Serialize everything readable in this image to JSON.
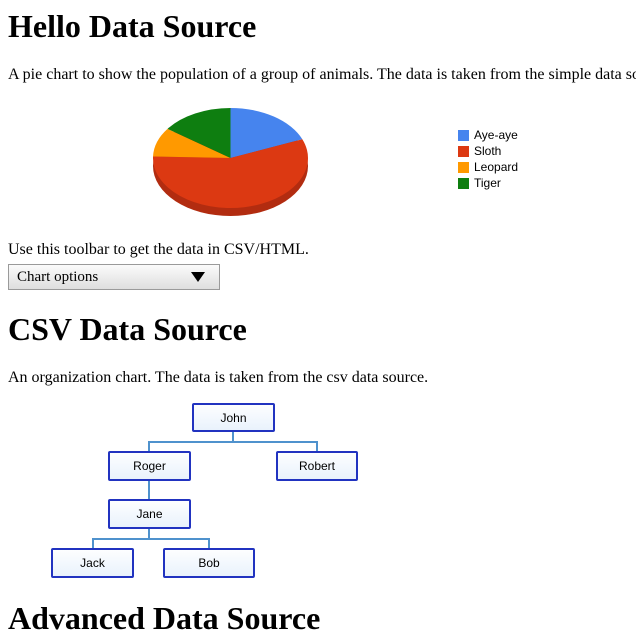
{
  "hello_section": {
    "title": "Hello Data Source",
    "description": "A pie chart to show the population of a group of animals. The data is taken from the simple data source.",
    "toolbar_hint": "Use this toolbar to get the data in CSV/HTML.",
    "toolbar_button_label": "Chart options",
    "toolbar_arrow_icon": "dropdown-triangle"
  },
  "csv_section": {
    "title": "CSV Data Source",
    "description": "An organization chart. The data is taken from the csv data source."
  },
  "advanced_section": {
    "title": "Advanced Data Source"
  },
  "colors": {
    "pie_blue": "#4684ee",
    "pie_red": "#dc3912",
    "pie_orange": "#ff9900",
    "pie_green": "#0e7e10",
    "pie_rim": "#b22c10",
    "org_node_border": "#2133c0",
    "org_connector": "#4f92cd"
  },
  "chart_data": [
    {
      "type": "pie",
      "title": "",
      "labels": [
        "Aye-aye",
        "Sloth",
        "Leopard",
        "Tiger"
      ],
      "values": [
        100,
        300,
        50,
        80
      ],
      "colors": [
        "#4684ee",
        "#dc3912",
        "#ff9900",
        "#0e7e10"
      ],
      "legend_position": "right",
      "three_d": true,
      "start_angle_deg": 90,
      "direction": "clockwise"
    },
    {
      "type": "orgchart",
      "nodes": [
        {
          "name": "John",
          "parent": null
        },
        {
          "name": "Roger",
          "parent": "John"
        },
        {
          "name": "Robert",
          "parent": "John"
        },
        {
          "name": "Jane",
          "parent": "Roger"
        },
        {
          "name": "Jack",
          "parent": "Jane"
        },
        {
          "name": "Bob",
          "parent": "Jane"
        }
      ]
    }
  ]
}
